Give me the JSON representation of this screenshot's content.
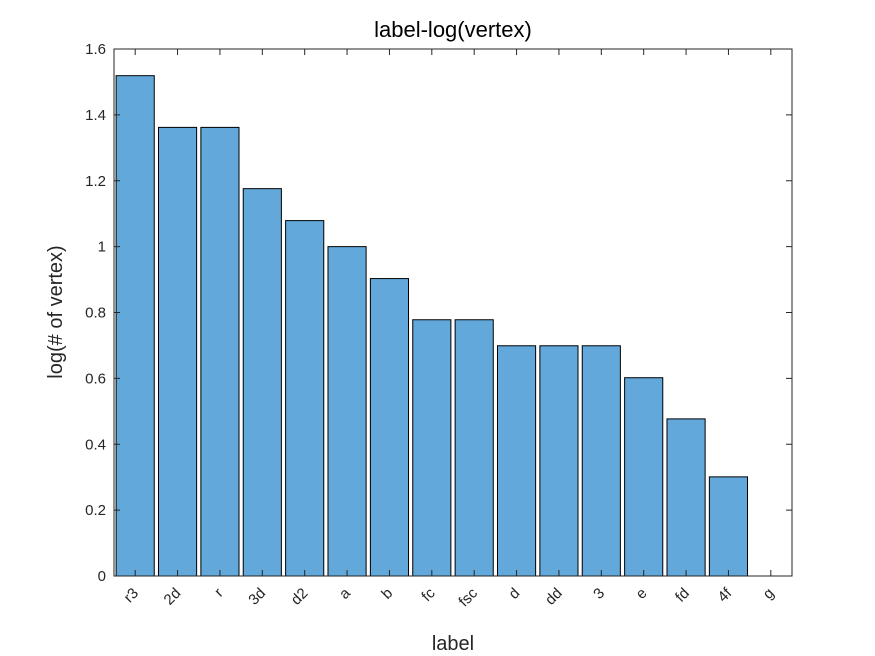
{
  "chart_data": {
    "type": "bar",
    "title": "label-log(vertex)",
    "xlabel": "label",
    "ylabel": "log(# of vertex)",
    "categories": [
      "r3",
      "2d",
      "r",
      "3d",
      "d2",
      "a",
      "b",
      "fc",
      "fsc",
      "d",
      "dd",
      "3",
      "e",
      "fd",
      "4f",
      "g"
    ],
    "values": [
      1.519,
      1.362,
      1.362,
      1.176,
      1.079,
      1.0,
      0.903,
      0.778,
      0.778,
      0.699,
      0.699,
      0.699,
      0.602,
      0.477,
      0.301,
      0
    ],
    "ylim": [
      0,
      1.6
    ],
    "yticks": [
      "0",
      "0.2",
      "0.4",
      "0.6",
      "0.8",
      "1",
      "1.2",
      "1.4",
      "1.6"
    ],
    "grid": false,
    "colors": {
      "bar": "#62a8da",
      "bar_edge": "#000000",
      "axis": "#262626"
    }
  }
}
